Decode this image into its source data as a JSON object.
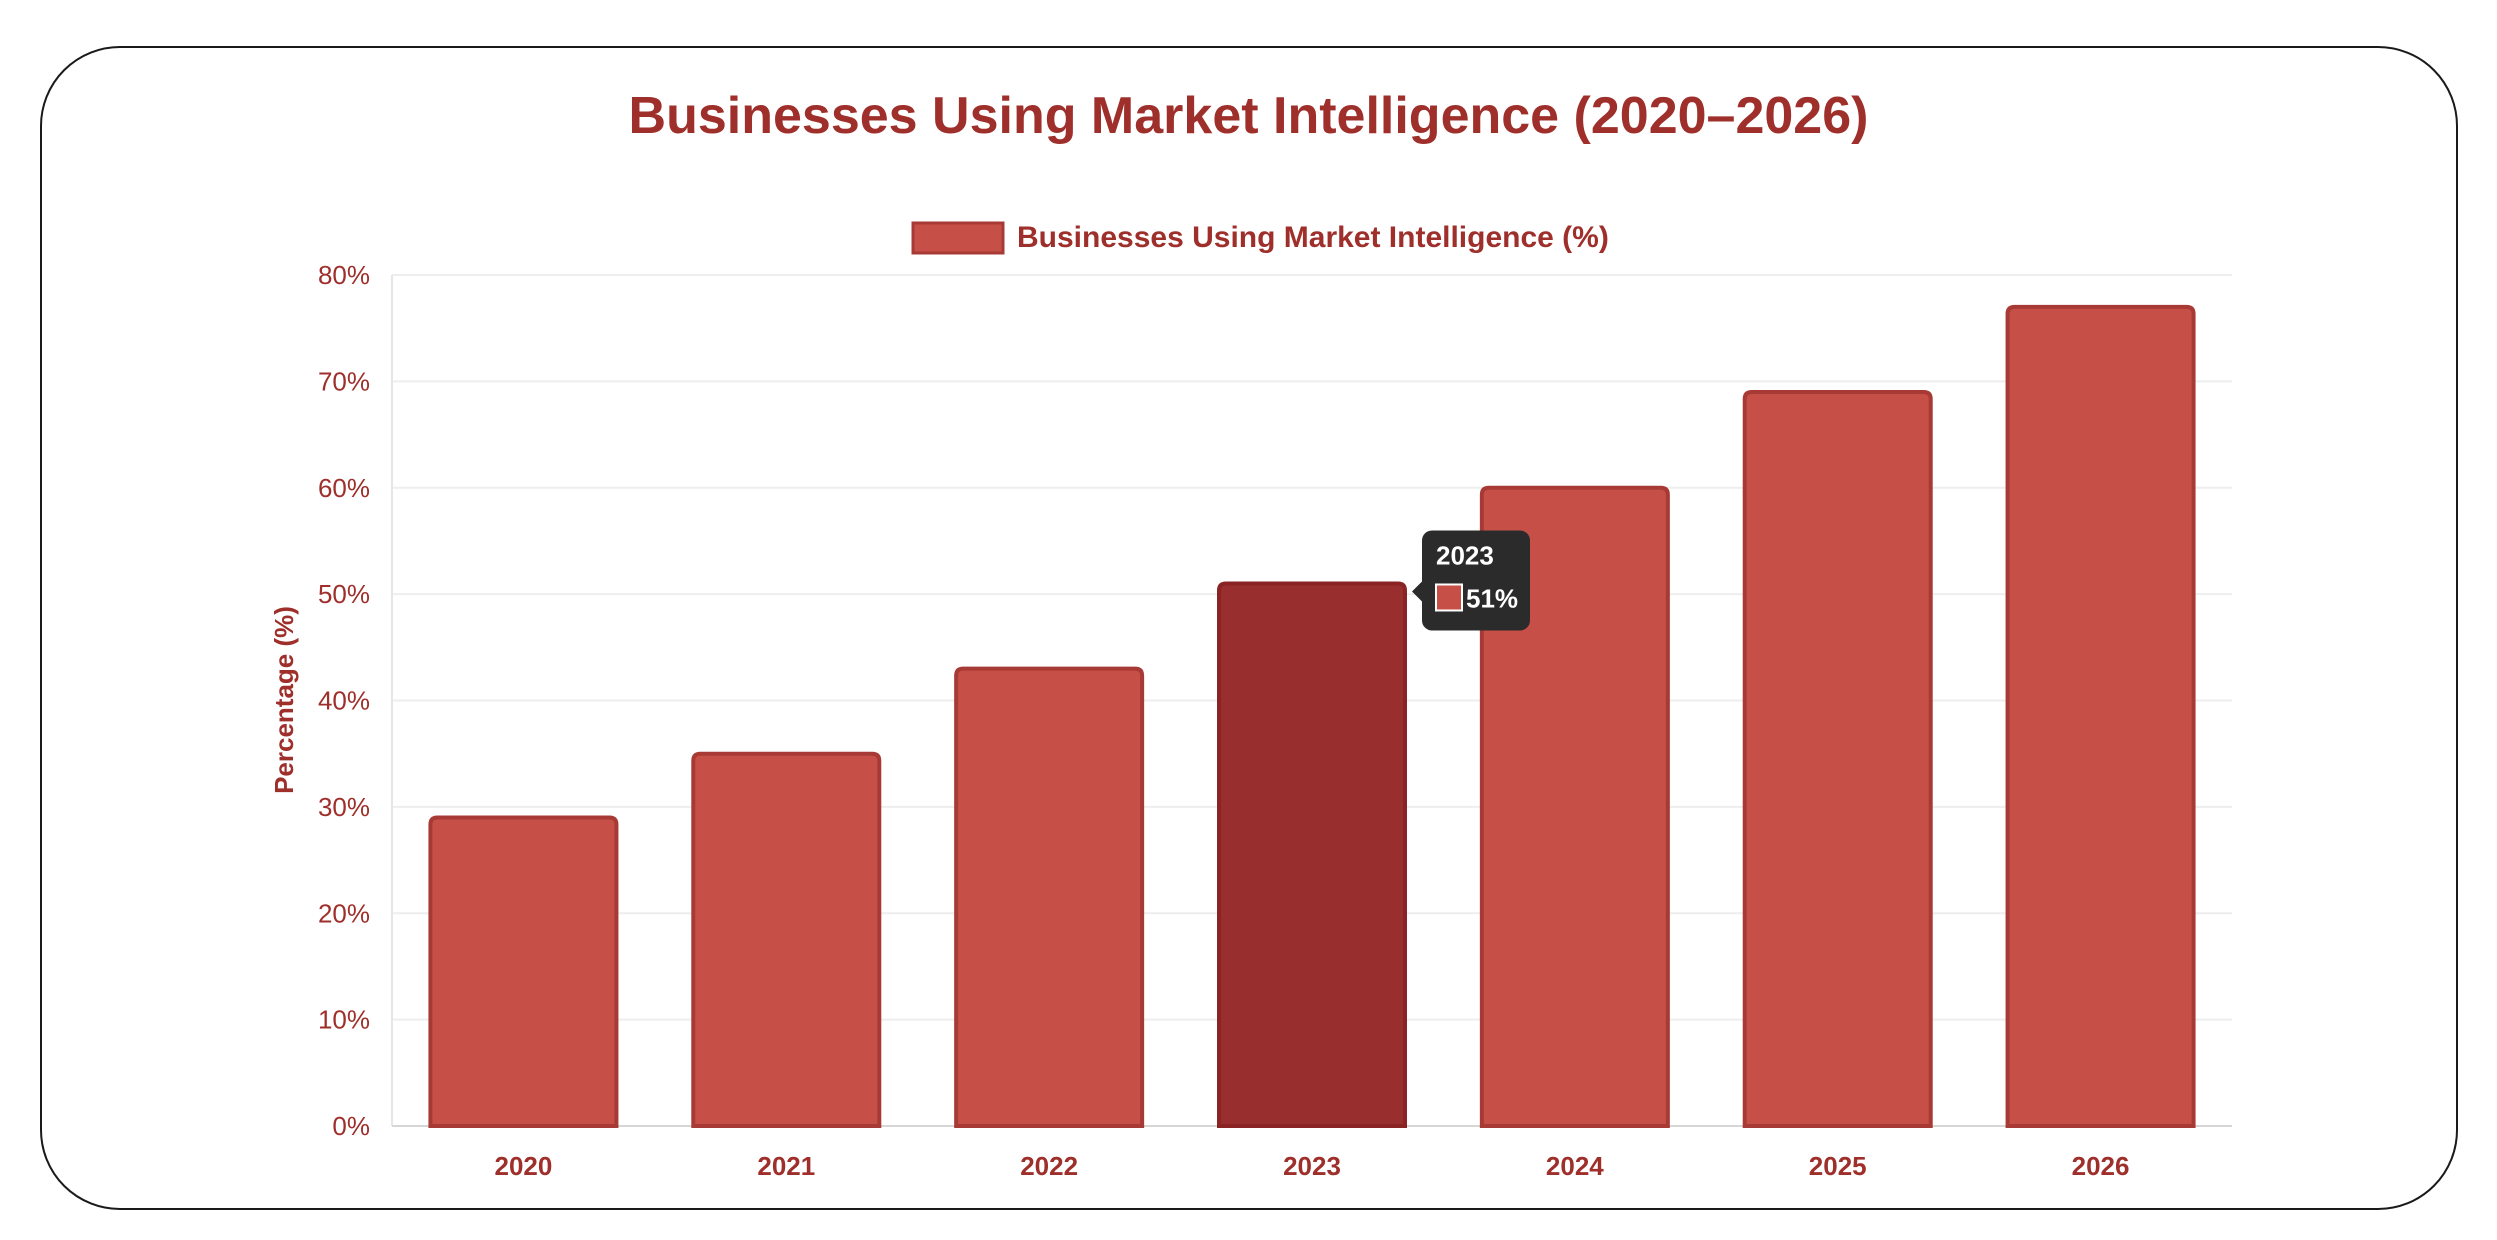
{
  "title": "Businesses Using Market Intelligence (2020–2026)",
  "chart_data": {
    "type": "bar",
    "title": "Businesses Using Market Intelligence (2020–2026)",
    "categories": [
      "2020",
      "2021",
      "2022",
      "2023",
      "2024",
      "2025",
      "2026"
    ],
    "series": [
      {
        "name": "Businesses Using Market Intelligence (%)",
        "values": [
          29,
          35,
          43,
          51,
          60,
          69,
          77
        ]
      }
    ],
    "ylabel": "Percentage (%)",
    "xlabel": "",
    "ylim": [
      0,
      80
    ],
    "yticks": [
      0,
      10,
      20,
      30,
      40,
      50,
      60,
      70,
      80
    ],
    "ytick_labels": [
      "0%",
      "10%",
      "20%",
      "30%",
      "40%",
      "50%",
      "60%",
      "70%",
      "80%"
    ],
    "legend_position": "top-center",
    "grid": true,
    "colors": {
      "bar": "#c65048",
      "bar_border": "#a83a35",
      "bar_highlight": "#982e2e",
      "text": "#9e2f2b",
      "tooltip_bg": "#2b2b2b"
    },
    "tooltip": {
      "category": "2023",
      "title": "2023",
      "value_label": "51%"
    }
  }
}
